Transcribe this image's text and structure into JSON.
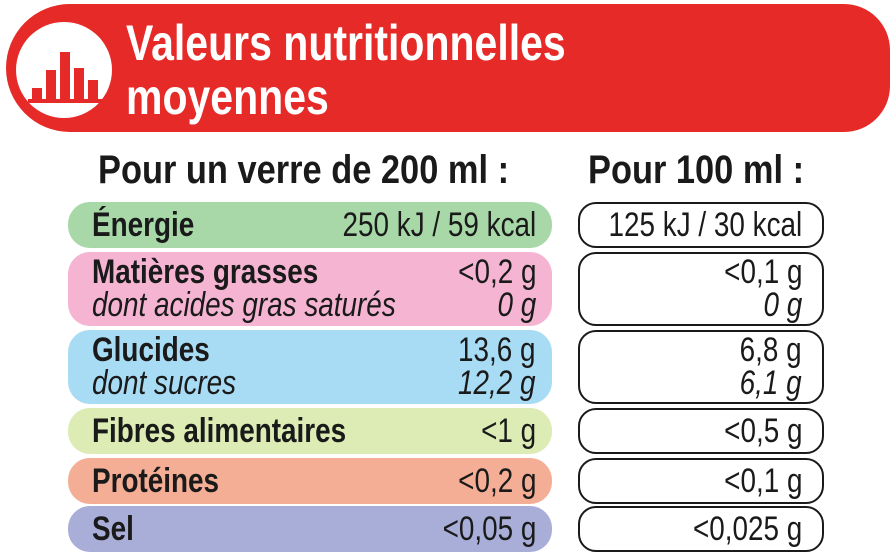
{
  "header": {
    "title_line1": "Valeurs nutritionnelles",
    "title_line2": "moyennes",
    "logo_icon": "bar-chart-icon",
    "accent_color": "#e52a28"
  },
  "columns": {
    "per_glass": "Pour un verre de 200 ml :",
    "per_100ml": "Pour 100 ml :"
  },
  "rows": [
    {
      "label": "Énergie",
      "per_glass": "250 kJ / 59 kcal",
      "per_100ml": "125 kJ / 30 kcal",
      "color": "#a8d8a8"
    },
    {
      "label": "Matières grasses",
      "per_glass": "<0,2 g",
      "per_100ml": "<0,1 g",
      "sub_label": "dont acides gras saturés",
      "sub_per_glass": "0 g",
      "sub_per_100ml": "0 g",
      "color": "#f5b4d2"
    },
    {
      "label": "Glucides",
      "per_glass": "13,6 g",
      "per_100ml": "6,8 g",
      "sub_label": "dont sucres",
      "sub_per_glass": "12,2 g",
      "sub_per_100ml": "6,1 g",
      "color": "#a8dcf4"
    },
    {
      "label": "Fibres alimentaires",
      "per_glass": "<1 g",
      "per_100ml": "<0,5 g",
      "color": "#dcecb4"
    },
    {
      "label": "Protéines",
      "per_glass": "<0,2 g",
      "per_100ml": "<0,1 g",
      "color": "#f5ae96"
    },
    {
      "label": "Sel",
      "per_glass": "<0,05 g",
      "per_100ml": "<0,025 g",
      "color": "#a8aed8"
    }
  ]
}
